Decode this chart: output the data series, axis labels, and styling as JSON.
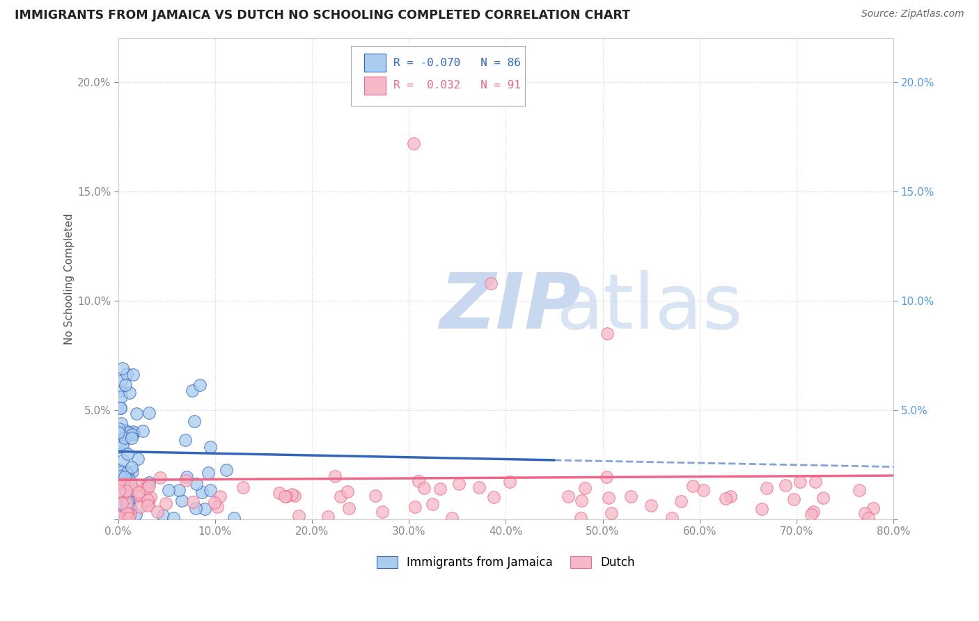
{
  "title": "IMMIGRANTS FROM JAMAICA VS DUTCH NO SCHOOLING COMPLETED CORRELATION CHART",
  "source_text": "Source: ZipAtlas.com",
  "ylabel": "No Schooling Completed",
  "legend_labels": [
    "Immigrants from Jamaica",
    "Dutch"
  ],
  "legend_r": [
    -0.07,
    0.032
  ],
  "legend_n": [
    86,
    91
  ],
  "jamaica_color": "#aaccee",
  "dutch_color": "#f4b8c8",
  "jamaica_line_color": "#3366bb",
  "dutch_line_color": "#ee6688",
  "background_color": "#ffffff",
  "grid_color": "#cccccc",
  "title_color": "#222222",
  "right_axis_color": "#5599dd",
  "xlim": [
    0.0,
    0.8
  ],
  "ylim": [
    0.0,
    0.22
  ],
  "xtick_vals": [
    0.0,
    0.1,
    0.2,
    0.3,
    0.4,
    0.5,
    0.6,
    0.7,
    0.8
  ],
  "xtick_labels": [
    "0.0%",
    "10.0%",
    "20.0%",
    "30.0%",
    "40.0%",
    "50.0%",
    "60.0%",
    "70.0%",
    "80.0%"
  ],
  "ytick_vals": [
    0.0,
    0.05,
    0.1,
    0.15,
    0.2
  ],
  "ytick_labels": [
    "",
    "5.0%",
    "10.0%",
    "15.0%",
    "20.0%"
  ],
  "watermark_zip_color": "#c8d8ee",
  "watermark_atlas_color": "#c8d8ee"
}
